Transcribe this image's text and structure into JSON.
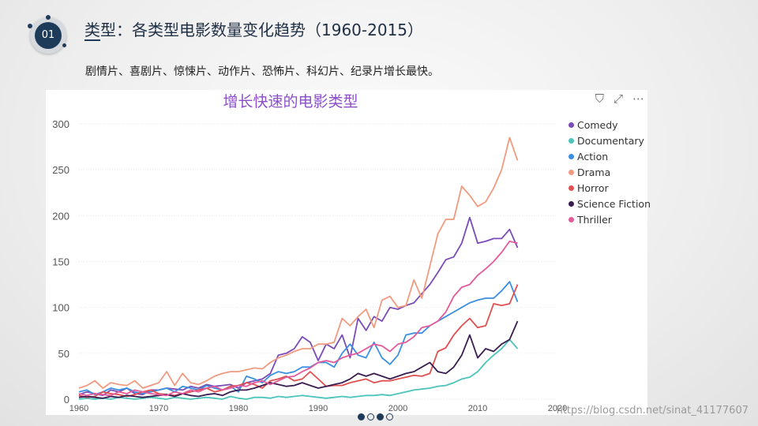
{
  "slide": {
    "badge_number": "01",
    "title": "类型：各类型电影数量变化趋势（1960-2015）",
    "subtitle": "剧情片、喜剧片、惊悚片、动作片、恐怖片、科幻片、纪录片增长最快。",
    "watermark": "https://blog.csdn.net/sinat_41177607"
  },
  "panel": {
    "icons": [
      "filter-icon",
      "focus-mode-icon",
      "more-options-icon"
    ],
    "icon_glyphs": [
      "⛉",
      "⤢",
      "⋯"
    ]
  },
  "chart_data": {
    "type": "line",
    "title": "增长快速的电影类型",
    "xlabel": "",
    "ylabel": "",
    "xlim": [
      1960,
      2020
    ],
    "ylim": [
      0,
      300
    ],
    "x_ticks": [
      1960,
      1970,
      1980,
      1990,
      2000,
      2010,
      2020
    ],
    "y_ticks": [
      0,
      50,
      100,
      150,
      200,
      250,
      300
    ],
    "grid": true,
    "legend_position": "right",
    "x": [
      1960,
      1961,
      1962,
      1963,
      1964,
      1965,
      1966,
      1967,
      1968,
      1969,
      1970,
      1971,
      1972,
      1973,
      1974,
      1975,
      1976,
      1977,
      1978,
      1979,
      1980,
      1981,
      1982,
      1983,
      1984,
      1985,
      1986,
      1987,
      1988,
      1989,
      1990,
      1991,
      1992,
      1993,
      1994,
      1995,
      1996,
      1997,
      1998,
      1999,
      2000,
      2001,
      2002,
      2003,
      2004,
      2005,
      2006,
      2007,
      2008,
      2009,
      2010,
      2011,
      2012,
      2013,
      2014,
      2015
    ],
    "series": [
      {
        "name": "Comedy",
        "color": "#7b4bb8",
        "values": [
          5,
          8,
          6,
          4,
          10,
          8,
          12,
          6,
          5,
          10,
          10,
          12,
          11,
          10,
          14,
          12,
          16,
          14,
          15,
          16,
          12,
          18,
          20,
          22,
          28,
          48,
          50,
          55,
          68,
          62,
          42,
          60,
          55,
          70,
          45,
          88,
          75,
          90,
          85,
          100,
          98,
          102,
          105,
          115,
          125,
          138,
          152,
          155,
          170,
          198,
          170,
          172,
          175,
          175,
          185,
          165
        ]
      },
      {
        "name": "Documentary",
        "color": "#4cc3bb",
        "values": [
          0,
          1,
          0,
          1,
          0,
          2,
          1,
          0,
          1,
          2,
          1,
          0,
          2,
          1,
          0,
          1,
          2,
          1,
          0,
          3,
          1,
          0,
          2,
          2,
          1,
          3,
          2,
          3,
          4,
          3,
          2,
          1,
          2,
          3,
          2,
          3,
          4,
          4,
          5,
          4,
          6,
          8,
          10,
          11,
          12,
          14,
          15,
          18,
          22,
          24,
          30,
          40,
          48,
          55,
          65,
          55
        ]
      },
      {
        "name": "Action",
        "color": "#3a8fe0",
        "values": [
          8,
          10,
          5,
          8,
          12,
          10,
          12,
          8,
          6,
          8,
          10,
          12,
          8,
          14,
          12,
          10,
          15,
          12,
          10,
          14,
          8,
          25,
          22,
          18,
          26,
          30,
          28,
          30,
          35,
          35,
          40,
          40,
          35,
          50,
          60,
          48,
          45,
          62,
          45,
          38,
          48,
          70,
          72,
          72,
          80,
          85,
          90,
          95,
          100,
          105,
          108,
          110,
          110,
          118,
          128,
          106
        ]
      },
      {
        "name": "Drama",
        "color": "#f09a80",
        "values": [
          12,
          15,
          20,
          12,
          18,
          16,
          15,
          20,
          12,
          15,
          18,
          30,
          15,
          28,
          18,
          16,
          20,
          25,
          28,
          30,
          30,
          32,
          34,
          33,
          40,
          45,
          48,
          52,
          55,
          55,
          60,
          60,
          62,
          88,
          80,
          90,
          98,
          78,
          108,
          112,
          100,
          102,
          130,
          110,
          145,
          180,
          196,
          196,
          232,
          222,
          210,
          215,
          230,
          250,
          285,
          260
        ]
      },
      {
        "name": "Horror",
        "color": "#e05050",
        "values": [
          4,
          2,
          3,
          8,
          6,
          5,
          3,
          5,
          8,
          10,
          6,
          5,
          4,
          6,
          8,
          10,
          12,
          8,
          10,
          14,
          15,
          18,
          16,
          12,
          20,
          22,
          25,
          20,
          22,
          30,
          22,
          14,
          15,
          15,
          18,
          20,
          22,
          18,
          20,
          20,
          22,
          24,
          26,
          25,
          28,
          52,
          56,
          70,
          80,
          88,
          78,
          80,
          104,
          102,
          104,
          125
        ]
      },
      {
        "name": "Science Fiction",
        "color": "#3a1d50",
        "values": [
          2,
          3,
          2,
          1,
          3,
          2,
          4,
          3,
          2,
          3,
          4,
          5,
          3,
          6,
          4,
          3,
          5,
          6,
          4,
          8,
          10,
          10,
          12,
          15,
          18,
          16,
          14,
          15,
          18,
          15,
          12,
          14,
          16,
          18,
          22,
          28,
          25,
          28,
          25,
          22,
          25,
          28,
          30,
          35,
          40,
          30,
          28,
          35,
          48,
          70,
          45,
          55,
          52,
          60,
          65,
          85
        ]
      },
      {
        "name": "Thriller",
        "color": "#e35a9a",
        "values": [
          6,
          4,
          6,
          5,
          4,
          8,
          6,
          10,
          8,
          6,
          5,
          4,
          8,
          6,
          10,
          8,
          12,
          14,
          10,
          12,
          15,
          14,
          18,
          20,
          16,
          20,
          24,
          25,
          30,
          34,
          40,
          42,
          40,
          45,
          48,
          50,
          55,
          60,
          58,
          52,
          60,
          62,
          68,
          78,
          80,
          85,
          95,
          112,
          122,
          125,
          135,
          142,
          150,
          160,
          172,
          170
        ]
      }
    ]
  }
}
